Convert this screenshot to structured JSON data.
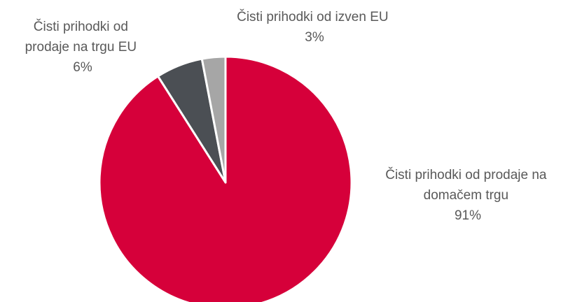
{
  "chart_data": {
    "type": "pie",
    "title": "",
    "start_angle_deg": 0,
    "direction": "clockwise",
    "slices": [
      {
        "label_lines": [
          "Čisti prihodki od prodaje na",
          "domačem trgu"
        ],
        "value": 91,
        "value_label": "91%",
        "color": "#D6003A"
      },
      {
        "label_lines": [
          "Čisti prihodki od",
          "prodaje na trgu EU"
        ],
        "value": 6,
        "value_label": "6%",
        "color": "#4B4F54"
      },
      {
        "label_lines": [
          "Čisti prihodki od izven EU"
        ],
        "value": 3,
        "value_label": "3%",
        "color": "#A6A6A6"
      }
    ],
    "legend": "none"
  }
}
